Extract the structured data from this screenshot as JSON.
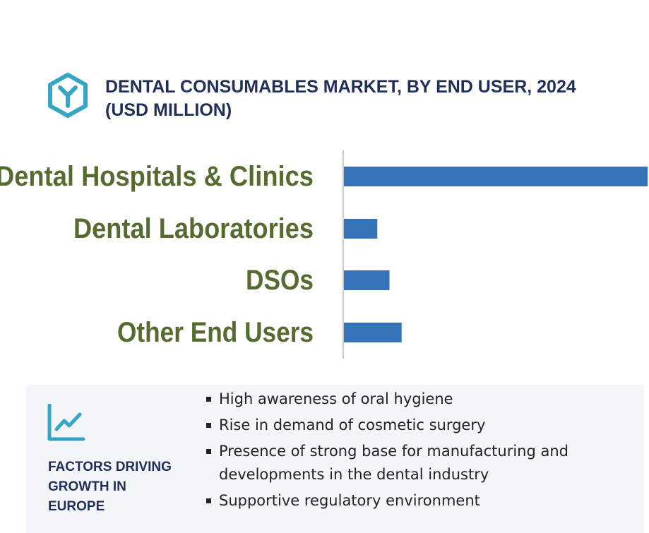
{
  "header": {
    "icon": "hexagon-y-logo-icon",
    "title_line1": "DENTAL CONSUMABLES MARKET, BY END USER, 2024",
    "title_line2": "(USD MILLION)"
  },
  "chart_data": {
    "type": "bar",
    "orientation": "horizontal",
    "categories": [
      "Dental Hospitals & Clinics",
      "Dental Laboratories",
      "DSOs",
      "Other End Users"
    ],
    "values": [
      100,
      11,
      15,
      19
    ],
    "xlim": [
      0,
      100
    ],
    "title": "DENTAL CONSUMABLES MARKET, BY END USER, 2024 (USD MILLION)",
    "xlabel": "",
    "ylabel": "",
    "grid": false,
    "legend": "none",
    "bar_color": "#3573b9",
    "label_color": "#556b2f",
    "axis_color": "#c8c8c8"
  },
  "factors": {
    "icon": "trend-line-chart-icon",
    "heading_line1": "FACTORS DRIVING",
    "heading_line2": "GROWTH IN",
    "heading_line3": "EUROPE",
    "items": [
      "High awareness of oral hygiene",
      "Rise in demand of cosmetic surgery",
      "Presence of strong base for manufacturing and developments in the dental industry",
      "Supportive regulatory environment"
    ]
  },
  "colors": {
    "title": "#1f2f57",
    "icon": "#35a6c6",
    "panel_bg": "#f3f5f8"
  }
}
